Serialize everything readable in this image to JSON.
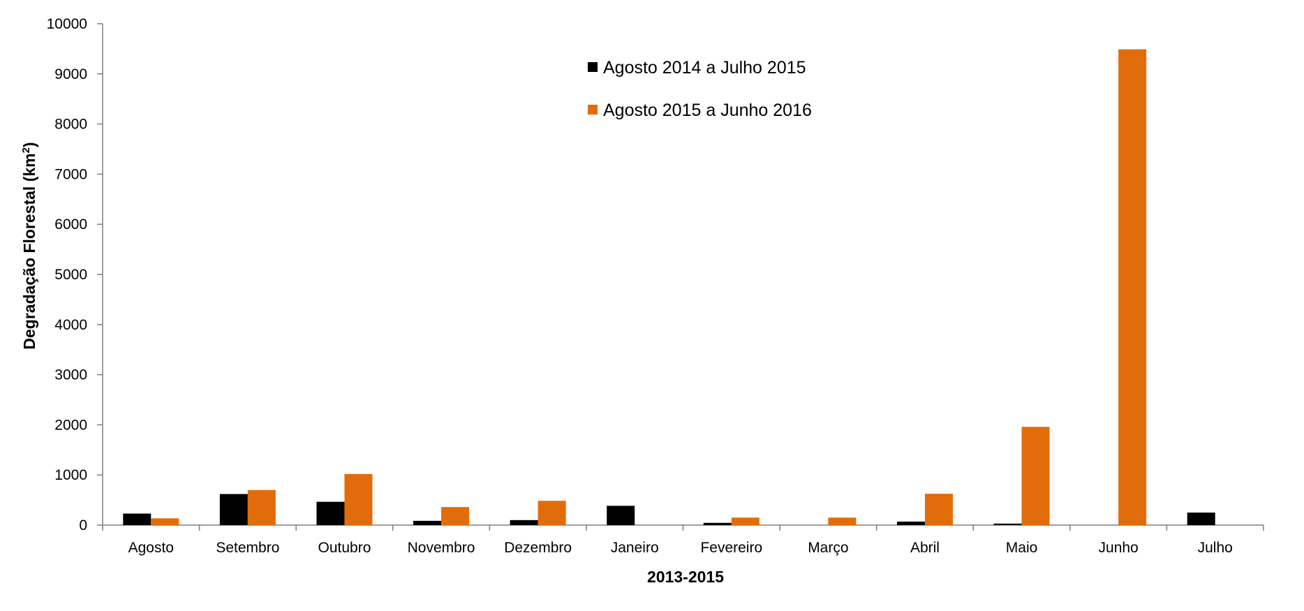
{
  "chart_data": {
    "type": "bar",
    "title": "",
    "xlabel": "2013-2015",
    "ylabel_main": "Degradação Florestal (km",
    "ylabel_sup": "2",
    "ylabel_close": ")",
    "ylim": [
      0,
      10000
    ],
    "yticks": [
      "0",
      "1000",
      "2000",
      "3000",
      "4000",
      "5000",
      "6000",
      "7000",
      "8000",
      "9000",
      "10000"
    ],
    "categories": [
      "Agosto",
      "Setembro",
      "Outubro",
      "Novembro",
      "Dezembro",
      "Janeiro",
      "Fevereiro",
      "Março",
      "Abril",
      "Maio",
      "Junho",
      "Julho"
    ],
    "series": [
      {
        "name": "Agosto 2014 a Julho 2015",
        "color": "#000000",
        "values": [
          230,
          620,
          465,
          85,
          100,
          385,
          45,
          0,
          70,
          30,
          0,
          250
        ]
      },
      {
        "name": "Agosto 2015 a Junho 2016",
        "color": "#E36C0A",
        "values": [
          135,
          700,
          1020,
          360,
          485,
          0,
          150,
          150,
          625,
          1960,
          9490,
          0
        ]
      }
    ],
    "legend_position": "top-center",
    "grid": false
  }
}
